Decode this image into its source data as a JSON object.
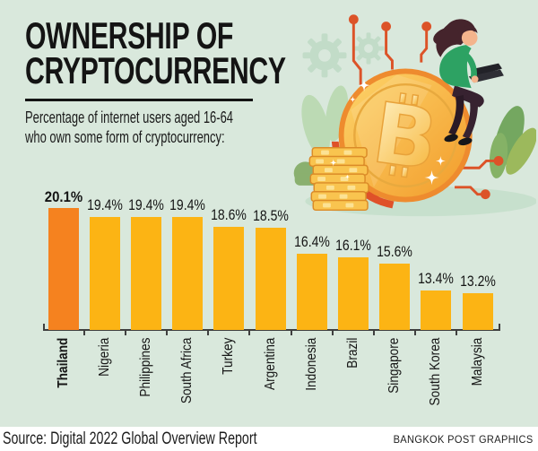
{
  "header": {
    "title_line1": "OWNERSHIP OF",
    "title_line2": "CRYPTOCURRENCY",
    "subtitle_line1": "Percentage of internet users aged 16-64",
    "subtitle_line2": "who own some form of cryptocurrency:"
  },
  "chart_data": {
    "type": "bar",
    "title": "Ownership of cryptocurrency",
    "categories": [
      "Thailand",
      "Nigeria",
      "Philippines",
      "South Africa",
      "Turkey",
      "Argentina",
      "Indonesia",
      "Brazil",
      "Singapore",
      "South Korea",
      "Malaysia"
    ],
    "values": [
      20.1,
      19.4,
      19.4,
      19.4,
      18.6,
      18.5,
      16.4,
      16.1,
      15.6,
      13.4,
      13.2
    ],
    "value_labels": [
      "20.1%",
      "19.4%",
      "19.4%",
      "19.4%",
      "18.6%",
      "18.5%",
      "16.4%",
      "16.1%",
      "15.6%",
      "13.4%",
      "13.2%"
    ],
    "highlight_index": 0,
    "xlabel": "",
    "ylabel": "",
    "ylim": [
      10.2,
      20.1
    ],
    "grid": false,
    "legend": null,
    "bar_color": "#fcb414",
    "highlight_color": "#f5821f"
  },
  "illustration": {
    "description": "woman with laptop sitting on giant bitcoin coin beside stack of gold coins, plants, gears and circuit lines",
    "coin_symbol": "B"
  },
  "footer": {
    "source": "Source: Digital 2022 Global Overview Report",
    "credit": "BANGKOK POST GRAPHICS"
  },
  "colors": {
    "background": "#d9e8dc",
    "bar": "#fcb414",
    "bar_highlight": "#f5821f",
    "axis": "#3f3f3f",
    "accent_circuit": "#dc5328",
    "coin_gold": "#f9c44f",
    "footer_bg": "#ffffff",
    "text": "#141414"
  }
}
